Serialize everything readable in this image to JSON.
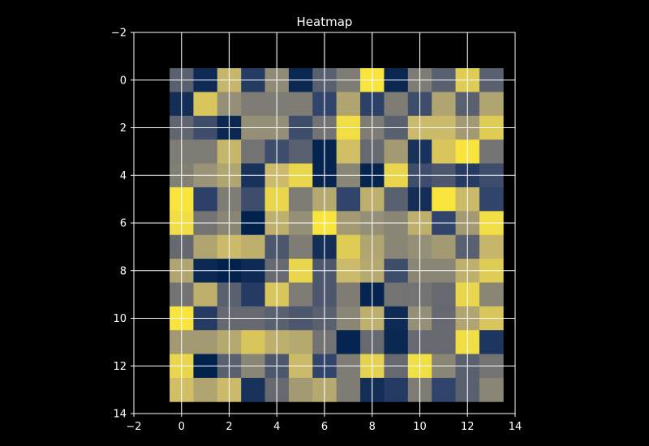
{
  "chart_data": {
    "type": "heatmap",
    "title": "Heatmap",
    "colormap": "cividis",
    "colormap_stops": [
      "#00204c",
      "#31446b",
      "#666970",
      "#958f78",
      "#cbba69",
      "#fee838"
    ],
    "background": "#000000",
    "foreground": "#ffffff",
    "xlim": [
      -2,
      14
    ],
    "ylim": [
      14,
      -2
    ],
    "x_ticks": [
      -2,
      0,
      2,
      4,
      6,
      8,
      10,
      12,
      14
    ],
    "y_ticks": [
      -2,
      0,
      2,
      4,
      6,
      8,
      10,
      12,
      14
    ],
    "x_tick_labels": [
      "−2",
      "0",
      "2",
      "4",
      "6",
      "8",
      "10",
      "12",
      "14"
    ],
    "y_tick_labels": [
      "−2",
      "0",
      "2",
      "4",
      "6",
      "8",
      "10",
      "12",
      "14"
    ],
    "grid": true,
    "rows": 14,
    "cols": 14,
    "values": [
      [
        0.35,
        0.06,
        0.78,
        0.15,
        0.58,
        0.04,
        0.35,
        0.5,
        0.98,
        0.04,
        0.5,
        0.35,
        0.88,
        0.35
      ],
      [
        0.08,
        0.85,
        0.6,
        0.5,
        0.5,
        0.5,
        0.2,
        0.7,
        0.18,
        0.5,
        0.25,
        0.7,
        0.35,
        0.7
      ],
      [
        0.38,
        0.25,
        0.04,
        0.6,
        0.6,
        0.25,
        0.45,
        0.95,
        0.5,
        0.35,
        0.8,
        0.8,
        0.65,
        0.88
      ],
      [
        0.5,
        0.5,
        0.78,
        0.45,
        0.25,
        0.35,
        0.02,
        0.82,
        0.4,
        0.65,
        0.1,
        0.85,
        0.98,
        0.45
      ],
      [
        0.52,
        0.62,
        0.7,
        0.1,
        0.8,
        0.92,
        0.02,
        0.55,
        0.02,
        0.92,
        0.25,
        0.3,
        0.15,
        0.25
      ],
      [
        0.98,
        0.18,
        0.5,
        0.25,
        0.92,
        0.5,
        0.72,
        0.2,
        0.75,
        0.35,
        0.08,
        0.98,
        0.8,
        0.2
      ],
      [
        0.95,
        0.45,
        0.55,
        0.01,
        0.75,
        0.6,
        0.98,
        0.65,
        0.6,
        0.55,
        0.75,
        0.2,
        0.65,
        0.95
      ],
      [
        0.4,
        0.7,
        0.8,
        0.75,
        0.3,
        0.5,
        0.08,
        0.88,
        0.7,
        0.55,
        0.6,
        0.65,
        0.35,
        0.78
      ],
      [
        0.7,
        0.05,
        0.01,
        0.06,
        0.4,
        0.92,
        0.3,
        0.8,
        0.72,
        0.25,
        0.55,
        0.55,
        0.75,
        0.88
      ],
      [
        0.45,
        0.75,
        0.35,
        0.15,
        0.85,
        0.5,
        0.3,
        0.5,
        0.02,
        0.45,
        0.45,
        0.4,
        0.92,
        0.55
      ],
      [
        0.98,
        0.15,
        0.4,
        0.4,
        0.35,
        0.3,
        0.35,
        0.55,
        0.75,
        0.06,
        0.6,
        0.4,
        0.7,
        0.85
      ],
      [
        0.65,
        0.65,
        0.72,
        0.85,
        0.75,
        0.72,
        0.45,
        0.02,
        0.4,
        0.04,
        0.4,
        0.4,
        0.95,
        0.12
      ],
      [
        0.92,
        0.01,
        0.35,
        0.55,
        0.3,
        0.8,
        0.2,
        0.5,
        0.9,
        0.4,
        0.95,
        0.55,
        0.35,
        0.45
      ],
      [
        0.82,
        0.7,
        0.8,
        0.1,
        0.4,
        0.65,
        0.72,
        0.5,
        0.08,
        0.15,
        0.5,
        0.2,
        0.35,
        0.55
      ]
    ]
  }
}
